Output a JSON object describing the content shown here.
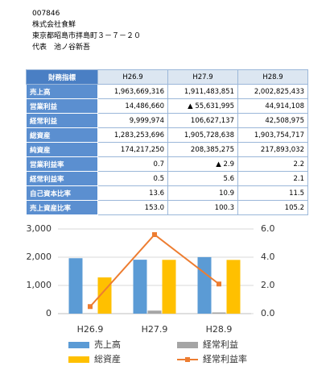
{
  "header": {
    "code": "007846",
    "company": "株式会社食鮮",
    "address": "東京都昭島市拝島町３－７－２０",
    "representative": "代表　池ノ谷新吾"
  },
  "table": {
    "header": [
      "財務指標",
      "H26.9",
      "H27.9",
      "H28.9"
    ],
    "rows": [
      [
        "売上高",
        "1,963,669,316",
        "1,911,483,851",
        "2,002,825,433"
      ],
      [
        "営業利益",
        "14,486,660",
        "▲ 55,631,995",
        "44,914,108"
      ],
      [
        "経常利益",
        "9,999,974",
        "106,627,137",
        "42,508,975"
      ],
      [
        "総資産",
        "1,283,253,696",
        "1,905,728,638",
        "1,903,754,717"
      ],
      [
        "純資産",
        "174,217,250",
        "208,385,275",
        "217,893,032"
      ],
      [
        "営業利益率",
        "0.7",
        "▲ 2.9",
        "2.2"
      ],
      [
        "経常利益率",
        "0.5",
        "5.6",
        "2.1"
      ],
      [
        "自己資本比率",
        "13.6",
        "10.9",
        "11.5"
      ],
      [
        "売上資産比率",
        "153.0",
        "100.3",
        "105.2"
      ]
    ]
  },
  "chart_data": {
    "type": "bar",
    "categories": [
      "H26.9",
      "H27.9",
      "H28.9"
    ],
    "series": [
      {
        "name": "売上高",
        "color": "#5b9bd5",
        "values": [
          1964,
          1911,
          2003
        ]
      },
      {
        "name": "経常利益",
        "color": "#a5a5a5",
        "values": [
          10,
          107,
          43
        ]
      },
      {
        "name": "総資産",
        "color": "#ffc000",
        "values": [
          1283,
          1906,
          1904
        ]
      },
      {
        "name": "経常利益率",
        "color": "#ed7d31",
        "type": "line",
        "axis": "y2",
        "values": [
          0.5,
          5.6,
          2.1
        ]
      }
    ],
    "ylim": [
      0,
      3000
    ],
    "yticks": [
      0,
      {
        "value": 1000,
        "label": "1,000"
      },
      {
        "value": 2000,
        "label": "2,000"
      },
      {
        "value": 3000,
        "label": "3,000"
      }
    ],
    "y2lim": [
      0,
      6
    ],
    "y2ticks": [
      {
        "value": 0,
        "label": "0.0"
      },
      {
        "value": 2,
        "label": "2.0"
      },
      {
        "value": 4,
        "label": "4.0"
      },
      {
        "value": 6,
        "label": "6.0"
      }
    ],
    "grid": true
  }
}
